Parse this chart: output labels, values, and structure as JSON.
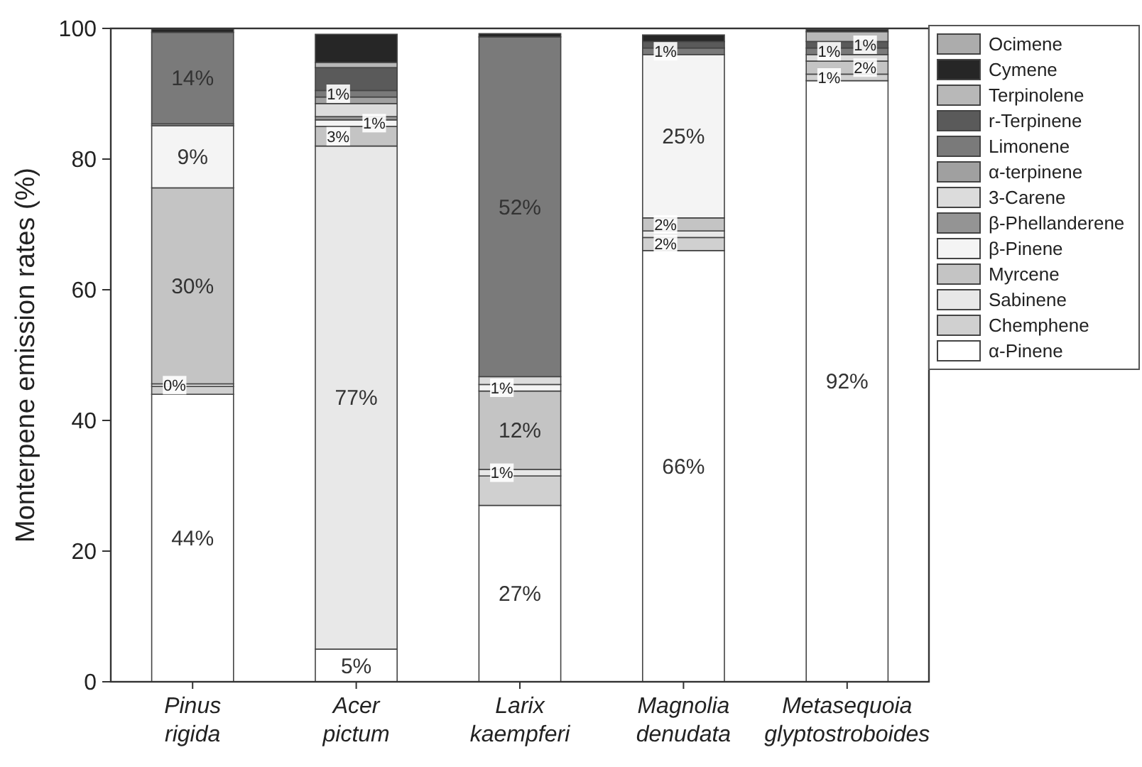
{
  "chart_data": {
    "type": "bar",
    "stacked": true,
    "ylabel": "Monterpene emission rates (%)",
    "categories": [
      "Pinus rigida",
      "Acer pictum",
      "Larix kaempferi",
      "Magnolia denudata",
      "Metasequoia glyptostroboides"
    ],
    "ylim": [
      0,
      100
    ],
    "yticks": [
      0,
      20,
      40,
      60,
      80,
      100
    ],
    "legend": "right",
    "grid": false,
    "series": [
      {
        "name": "α-Pinene",
        "color": "#ffffff",
        "values": [
          44,
          5,
          27,
          66,
          92
        ],
        "value_labels": [
          "44%",
          "5%",
          "27%",
          "66%",
          "92%"
        ]
      },
      {
        "name": "Chemphene",
        "color": "#d0d0d0",
        "values": [
          1.2,
          0,
          4.5,
          2,
          1
        ],
        "value_labels": [
          null,
          null,
          null,
          "2%",
          "1%"
        ]
      },
      {
        "name": "Sabinene",
        "color": "#e8e8e8",
        "values": [
          0.4,
          77,
          1,
          1,
          0
        ],
        "value_labels": [
          "0%",
          "77%",
          "1%",
          null,
          null
        ]
      },
      {
        "name": "Myrcene",
        "color": "#c4c4c4",
        "values": [
          30,
          3,
          12,
          2,
          2
        ],
        "value_labels": [
          "30%",
          "3%",
          "12%",
          "2%",
          "2%"
        ]
      },
      {
        "name": "β-Pinene",
        "color": "#f4f4f4",
        "values": [
          9.5,
          1,
          1,
          25,
          0
        ],
        "value_labels": [
          "9%",
          "1%",
          "1%",
          "25%",
          null
        ]
      },
      {
        "name": "β-Phellanderene",
        "color": "#949494",
        "values": [
          0.3,
          0.5,
          0,
          0,
          0
        ],
        "value_labels": [
          null,
          null,
          null,
          null,
          null
        ]
      },
      {
        "name": "3-Carene",
        "color": "#dcdcdc",
        "values": [
          0,
          2,
          1.2,
          0,
          1
        ],
        "value_labels": [
          null,
          null,
          null,
          null,
          null
        ]
      },
      {
        "name": "α-terpinene",
        "color": "#a0a0a0",
        "values": [
          0,
          1,
          0,
          0,
          0
        ],
        "value_labels": [
          null,
          null,
          null,
          null,
          null
        ]
      },
      {
        "name": "Limonene",
        "color": "#7a7a7a",
        "values": [
          14,
          1,
          52,
          1,
          1
        ],
        "value_labels": [
          "14%",
          "1%",
          "52%",
          "1%",
          "1%"
        ]
      },
      {
        "name": "r-Terpinene",
        "color": "#5a5a5a",
        "values": [
          0,
          3.5,
          0,
          1,
          1
        ],
        "value_labels": [
          null,
          null,
          null,
          null,
          "1%"
        ]
      },
      {
        "name": "Terpinolene",
        "color": "#b8b8b8",
        "values": [
          0,
          0.8,
          0,
          0,
          1.5
        ],
        "value_labels": [
          null,
          null,
          null,
          null,
          null
        ]
      },
      {
        "name": "Cymene",
        "color": "#262626",
        "values": [
          0.5,
          4.3,
          0.5,
          1,
          0.3
        ],
        "value_labels": [
          null,
          null,
          null,
          null,
          null
        ]
      },
      {
        "name": "Ocimene",
        "color": "#acacac",
        "values": [
          0,
          0,
          0,
          0,
          0
        ],
        "value_labels": [
          null,
          null,
          null,
          null,
          null
        ]
      }
    ]
  }
}
